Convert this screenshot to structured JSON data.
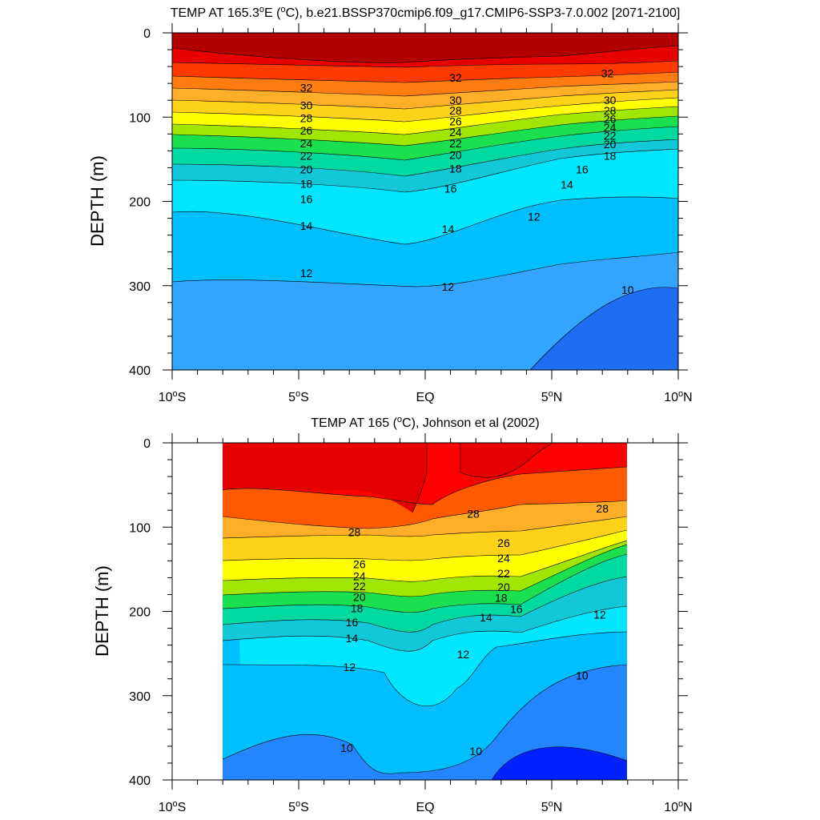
{
  "chart_data": [
    {
      "type": "contour",
      "title_prefix": "TEMP AT 165.3",
      "title_deg": "o",
      "title_mid1": "E (",
      "title_mid2": "C), b.e21.BSSP370cmip6.f09_g17.CMIP6-SSP3-7.0.002 [2071-2100]",
      "ylabel": "DEPTH (m)",
      "y_reversed": true,
      "ylim": [
        0,
        400
      ],
      "xlim": [
        -10,
        10
      ],
      "y_ticks": [
        "0",
        "100",
        "200",
        "300",
        "400"
      ],
      "x_ticks": [
        {
          "num": "10",
          "deg": "o",
          "hem": "S"
        },
        {
          "num": "5",
          "deg": "o",
          "hem": "S"
        },
        {
          "num": "EQ",
          "deg": "",
          "hem": ""
        },
        {
          "num": "5",
          "deg": "o",
          "hem": "N"
        },
        {
          "num": "10",
          "deg": "o",
          "hem": "N"
        }
      ],
      "contour_labels": [
        {
          "text": "32",
          "x": -4.7,
          "y": 65
        },
        {
          "text": "30",
          "x": -4.7,
          "y": 86
        },
        {
          "text": "28",
          "x": -4.7,
          "y": 101
        },
        {
          "text": "26",
          "x": -4.7,
          "y": 116
        },
        {
          "text": "24",
          "x": -4.7,
          "y": 131
        },
        {
          "text": "22",
          "x": -4.7,
          "y": 146
        },
        {
          "text": "20",
          "x": -4.7,
          "y": 162
        },
        {
          "text": "18",
          "x": -4.7,
          "y": 179
        },
        {
          "text": "16",
          "x": -4.7,
          "y": 197
        },
        {
          "text": "14",
          "x": -4.7,
          "y": 229
        },
        {
          "text": "12",
          "x": -4.7,
          "y": 285
        },
        {
          "text": "32",
          "x": 1.2,
          "y": 53
        },
        {
          "text": "30",
          "x": 1.2,
          "y": 80
        },
        {
          "text": "28",
          "x": 1.2,
          "y": 92
        },
        {
          "text": "26",
          "x": 1.2,
          "y": 105
        },
        {
          "text": "24",
          "x": 1.2,
          "y": 118
        },
        {
          "text": "22",
          "x": 1.2,
          "y": 131
        },
        {
          "text": "20",
          "x": 1.2,
          "y": 145
        },
        {
          "text": "18",
          "x": 1.2,
          "y": 161
        },
        {
          "text": "16",
          "x": 1.0,
          "y": 185
        },
        {
          "text": "14",
          "x": 0.9,
          "y": 233
        },
        {
          "text": "12",
          "x": 0.9,
          "y": 301
        },
        {
          "text": "32",
          "x": 7.2,
          "y": 48
        },
        {
          "text": "30",
          "x": 7.3,
          "y": 80
        },
        {
          "text": "28",
          "x": 7.3,
          "y": 92
        },
        {
          "text": "26",
          "x": 7.3,
          "y": 102
        },
        {
          "text": "24",
          "x": 7.3,
          "y": 112
        },
        {
          "text": "22",
          "x": 7.3,
          "y": 122
        },
        {
          "text": "20",
          "x": 7.3,
          "y": 132
        },
        {
          "text": "18",
          "x": 7.3,
          "y": 146
        },
        {
          "text": "16",
          "x": 6.2,
          "y": 162
        },
        {
          "text": "14",
          "x": 5.6,
          "y": 180
        },
        {
          "text": "12",
          "x": 4.3,
          "y": 218
        },
        {
          "text": "10",
          "x": 8.0,
          "y": 305
        }
      ]
    },
    {
      "type": "contour",
      "title_prefix": "TEMP AT 165 (",
      "title_deg": "o",
      "title_mid1": "C), Johnson et al (2002)",
      "title_mid2": "",
      "ylabel": "DEPTH (m)",
      "y_reversed": true,
      "ylim": [
        0,
        400
      ],
      "xlim": [
        -10,
        10
      ],
      "data_xrange": [
        -8,
        8
      ],
      "y_ticks": [
        "0",
        "100",
        "200",
        "300",
        "400"
      ],
      "x_ticks": [
        {
          "num": "10",
          "deg": "o",
          "hem": "S"
        },
        {
          "num": "5",
          "deg": "o",
          "hem": "S"
        },
        {
          "num": "EQ",
          "deg": "",
          "hem": ""
        },
        {
          "num": "5",
          "deg": "o",
          "hem": "N"
        },
        {
          "num": "10",
          "deg": "o",
          "hem": "N"
        }
      ],
      "contour_labels": [
        {
          "text": "28",
          "x": -2.8,
          "y": 106
        },
        {
          "text": "28",
          "x": 1.9,
          "y": 84
        },
        {
          "text": "28",
          "x": 7.0,
          "y": 78
        },
        {
          "text": "26",
          "x": -2.6,
          "y": 144
        },
        {
          "text": "24",
          "x": -2.6,
          "y": 158
        },
        {
          "text": "22",
          "x": -2.6,
          "y": 170
        },
        {
          "text": "20",
          "x": -2.6,
          "y": 183
        },
        {
          "text": "18",
          "x": -2.7,
          "y": 196
        },
        {
          "text": "16",
          "x": -2.9,
          "y": 213
        },
        {
          "text": "14",
          "x": -2.9,
          "y": 232
        },
        {
          "text": "12",
          "x": -3.0,
          "y": 266
        },
        {
          "text": "26",
          "x": 3.1,
          "y": 119
        },
        {
          "text": "24",
          "x": 3.1,
          "y": 137
        },
        {
          "text": "22",
          "x": 3.1,
          "y": 155
        },
        {
          "text": "20",
          "x": 3.1,
          "y": 171
        },
        {
          "text": "18",
          "x": 3.0,
          "y": 184
        },
        {
          "text": "16",
          "x": 3.6,
          "y": 197
        },
        {
          "text": "14",
          "x": 2.4,
          "y": 207
        },
        {
          "text": "12",
          "x": 1.5,
          "y": 251
        },
        {
          "text": "12",
          "x": 6.9,
          "y": 204
        },
        {
          "text": "10",
          "x": -3.1,
          "y": 362
        },
        {
          "text": "10",
          "x": 2.0,
          "y": 366
        },
        {
          "text": "10",
          "x": 6.2,
          "y": 276
        }
      ]
    }
  ]
}
